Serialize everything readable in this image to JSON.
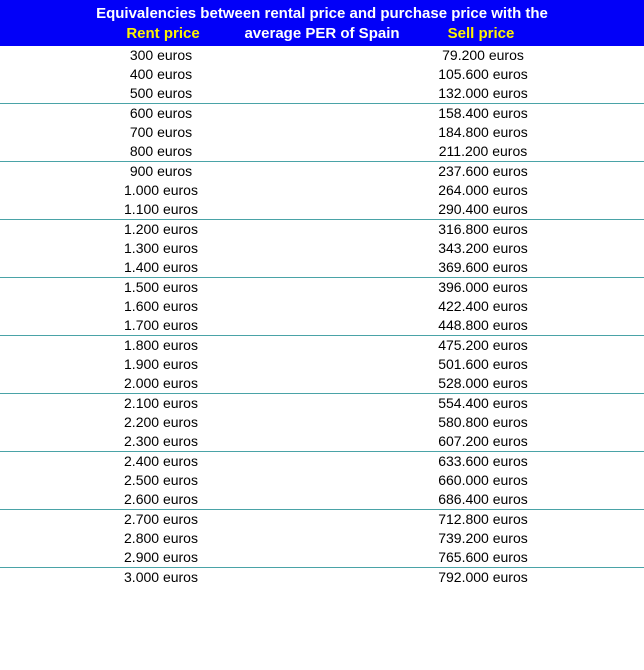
{
  "header": {
    "title_line1": "Equivalencies between rental price and purchase price with the",
    "title_line2": "average PER  of Spain",
    "rent_label": "Rent price",
    "sell_label": "Sell price",
    "bg_color": "#0200f8",
    "title_color": "#ffffff",
    "label_color": "#fef200",
    "title_fontsize": 15
  },
  "table": {
    "type": "table",
    "columns": [
      "Rent price",
      "Sell price"
    ],
    "separator_every": 3,
    "separator_color": "#4aa3a7",
    "text_color": "#000000",
    "fontsize": 14,
    "rows": [
      {
        "rent": "300 euros",
        "sell": "79.200 euros"
      },
      {
        "rent": "400 euros",
        "sell": "105.600 euros"
      },
      {
        "rent": "500 euros",
        "sell": "132.000 euros"
      },
      {
        "rent": "600 euros",
        "sell": "158.400 euros"
      },
      {
        "rent": "700 euros",
        "sell": "184.800 euros"
      },
      {
        "rent": "800 euros",
        "sell": "211.200 euros"
      },
      {
        "rent": "900 euros",
        "sell": "237.600 euros"
      },
      {
        "rent": "1.000 euros",
        "sell": "264.000 euros"
      },
      {
        "rent": "1.100 euros",
        "sell": "290.400 euros"
      },
      {
        "rent": "1.200 euros",
        "sell": "316.800 euros"
      },
      {
        "rent": "1.300 euros",
        "sell": "343.200 euros"
      },
      {
        "rent": "1.400 euros",
        "sell": "369.600 euros"
      },
      {
        "rent": "1.500 euros",
        "sell": "396.000 euros"
      },
      {
        "rent": "1.600 euros",
        "sell": "422.400 euros"
      },
      {
        "rent": "1.700 euros",
        "sell": "448.800 euros"
      },
      {
        "rent": "1.800 euros",
        "sell": "475.200 euros"
      },
      {
        "rent": "1.900 euros",
        "sell": "501.600 euros"
      },
      {
        "rent": "2.000 euros",
        "sell": "528.000 euros"
      },
      {
        "rent": "2.100 euros",
        "sell": "554.400 euros"
      },
      {
        "rent": "2.200 euros",
        "sell": "580.800 euros"
      },
      {
        "rent": "2.300 euros",
        "sell": "607.200 euros"
      },
      {
        "rent": "2.400 euros",
        "sell": "633.600 euros"
      },
      {
        "rent": "2.500 euros",
        "sell": "660.000 euros"
      },
      {
        "rent": "2.600 euros",
        "sell": "686.400 euros"
      },
      {
        "rent": "2.700 euros",
        "sell": "712.800 euros"
      },
      {
        "rent": "2.800 euros",
        "sell": "739.200 euros"
      },
      {
        "rent": "2.900 euros",
        "sell": "765.600 euros"
      },
      {
        "rent": "3.000 euros",
        "sell": "792.000 euros"
      }
    ]
  }
}
